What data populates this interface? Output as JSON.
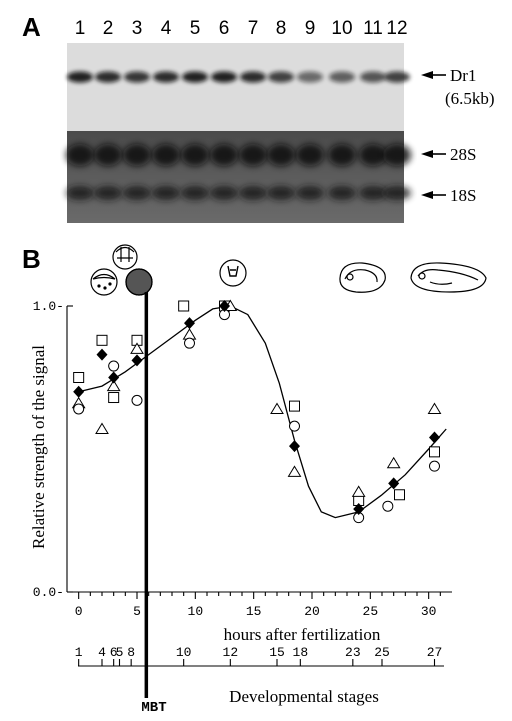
{
  "panels": {
    "a": "A",
    "b": "B"
  },
  "blot": {
    "lanes": [
      "1",
      "2",
      "3",
      "4",
      "5",
      "6",
      "7",
      "8",
      "9",
      "10",
      "11",
      "12"
    ],
    "band_label": "Dr1",
    "band_size": "(6.5kb)",
    "rrna": [
      "28S",
      "18S"
    ]
  },
  "chart_data": {
    "type": "scatter",
    "xlabel": "hours after fertilization",
    "ylabel": "Relative strength of the signal",
    "xlim": [
      -1,
      32
    ],
    "ylim": [
      0,
      1.05
    ],
    "x_ticks": [
      "0",
      "5",
      "10",
      "15",
      "20",
      "25",
      "30"
    ],
    "y_ticks": [
      "0.0",
      "1.0"
    ],
    "stage_ticks": [
      {
        "label": "1",
        "hour": 0
      },
      {
        "label": "4",
        "hour": 2
      },
      {
        "label": "6",
        "hour": 3
      },
      {
        "label": "5",
        "hour": 3.5
      },
      {
        "label": "8",
        "hour": 4.5
      },
      {
        "label": "10",
        "hour": 9
      },
      {
        "label": "12",
        "hour": 13
      },
      {
        "label": "15",
        "hour": 17
      },
      {
        "label": "18",
        "hour": 19
      },
      {
        "label": "23",
        "hour": 23.5
      },
      {
        "label": "25",
        "hour": 26
      },
      {
        "label": "27",
        "hour": 30.5
      }
    ],
    "stage_axis_label": "Developmental stages",
    "mbt_label": "MBT",
    "mbt_hour": 5.8,
    "series": [
      {
        "marker": "square",
        "points": [
          [
            0,
            0.75
          ],
          [
            2,
            0.88
          ],
          [
            3,
            0.68
          ],
          [
            5,
            0.88
          ],
          [
            9,
            1.0
          ],
          [
            12.5,
            1.0
          ],
          [
            18.5,
            0.65
          ],
          [
            24,
            0.32
          ],
          [
            27.5,
            0.34
          ],
          [
            30.5,
            0.49
          ]
        ]
      },
      {
        "marker": "triangle",
        "points": [
          [
            0,
            0.66
          ],
          [
            2,
            0.57
          ],
          [
            3,
            0.72
          ],
          [
            5,
            0.85
          ],
          [
            9.5,
            0.9
          ],
          [
            13,
            1.0
          ],
          [
            17,
            0.64
          ],
          [
            18.5,
            0.42
          ],
          [
            24,
            0.35
          ],
          [
            27,
            0.45
          ],
          [
            30.5,
            0.64
          ]
        ]
      },
      {
        "marker": "circle",
        "points": [
          [
            0,
            0.64
          ],
          [
            3,
            0.79
          ],
          [
            5,
            0.67
          ],
          [
            9.5,
            0.87
          ],
          [
            12.5,
            0.97
          ],
          [
            18.5,
            0.58
          ],
          [
            24,
            0.26
          ],
          [
            26.5,
            0.3
          ],
          [
            30.5,
            0.44
          ]
        ]
      },
      {
        "marker": "diamond",
        "points": [
          [
            0,
            0.7
          ],
          [
            2,
            0.83
          ],
          [
            3,
            0.75
          ],
          [
            5,
            0.81
          ],
          [
            9.5,
            0.94
          ],
          [
            12.5,
            1.0
          ],
          [
            18.5,
            0.51
          ],
          [
            24,
            0.29
          ],
          [
            27,
            0.38
          ],
          [
            30.5,
            0.54
          ]
        ]
      }
    ],
    "curve": [
      [
        0,
        0.7
      ],
      [
        2,
        0.72
      ],
      [
        4,
        0.77
      ],
      [
        6,
        0.83
      ],
      [
        8,
        0.89
      ],
      [
        10,
        0.95
      ],
      [
        11.5,
        0.99
      ],
      [
        13,
        1.0
      ],
      [
        14.5,
        0.97
      ],
      [
        16,
        0.87
      ],
      [
        17.2,
        0.73
      ],
      [
        18.5,
        0.53
      ],
      [
        19.7,
        0.37
      ],
      [
        20.8,
        0.28
      ],
      [
        22,
        0.26
      ],
      [
        24,
        0.28
      ],
      [
        26,
        0.34
      ],
      [
        28,
        0.41
      ],
      [
        30,
        0.5
      ],
      [
        31.5,
        0.57
      ]
    ]
  }
}
